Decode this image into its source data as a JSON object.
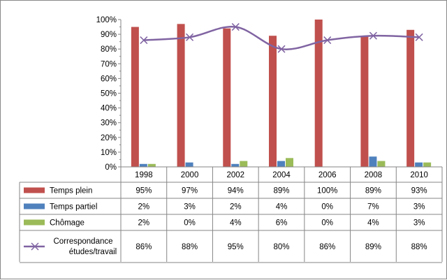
{
  "chart_data": {
    "type": "bar",
    "categories": [
      "1998",
      "2000",
      "2002",
      "2004",
      "2006",
      "2008",
      "2010"
    ],
    "series": [
      {
        "name": "Temps plein",
        "kind": "bar",
        "color": "#C0504D",
        "values": [
          95,
          97,
          94,
          89,
          100,
          89,
          93
        ]
      },
      {
        "name": "Temps partiel",
        "kind": "bar",
        "color": "#4F81BD",
        "values": [
          2,
          3,
          2,
          4,
          0,
          7,
          3
        ]
      },
      {
        "name": "Chômage",
        "kind": "bar",
        "color": "#9BBB59",
        "values": [
          2,
          0,
          4,
          6,
          0,
          4,
          3
        ]
      },
      {
        "name": "Correspondance études/travail",
        "kind": "line",
        "marker": "x",
        "color": "#8064A2",
        "values": [
          86,
          88,
          95,
          80,
          86,
          89,
          88
        ]
      }
    ],
    "ylim": [
      0,
      100
    ],
    "yticks": [
      0,
      10,
      20,
      30,
      40,
      50,
      60,
      70,
      80,
      90,
      100
    ],
    "ytick_suffix": "%",
    "value_suffix": "%",
    "legend": "data-table-left",
    "grid": false
  }
}
